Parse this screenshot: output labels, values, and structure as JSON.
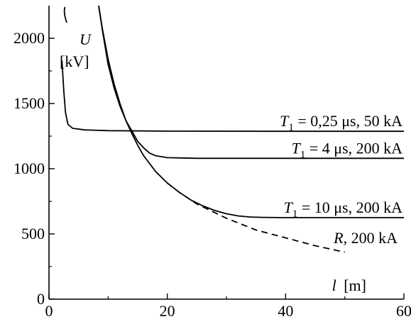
{
  "chart_data": {
    "type": "line",
    "title": "",
    "xlabel_symbol": "l",
    "xlabel_unit": "[m]",
    "ylabel_symbol": "U",
    "ylabel_unit": "[kV]",
    "xlim": [
      0,
      60
    ],
    "ylim": [
      0,
      2250
    ],
    "x_ticks": [
      0,
      20,
      40,
      60
    ],
    "y_ticks": [
      0,
      500,
      1000,
      1500,
      2000
    ],
    "x_tick_labels": [
      "0",
      "20",
      "40",
      "60"
    ],
    "y_tick_labels": [
      "0",
      "500",
      "1000",
      "1500",
      "2000"
    ],
    "grid": false,
    "series": [
      {
        "name": "T1 = 0,25 μs, 50 kA",
        "label_parts": {
          "sym": "T",
          "sub": "1",
          "rest": " = 0,25 μs, 50 kA"
        },
        "style": "solid",
        "points": [
          [
            2.2,
            1830
          ],
          [
            2.5,
            1600
          ],
          [
            2.8,
            1430
          ],
          [
            3.2,
            1340
          ],
          [
            4,
            1310
          ],
          [
            6,
            1298
          ],
          [
            10,
            1292
          ],
          [
            20,
            1288
          ],
          [
            40,
            1287
          ],
          [
            60,
            1287
          ]
        ]
      },
      {
        "name": "T1 = 4 μs, 200 kA",
        "label_parts": {
          "sym": "T",
          "sub": "1",
          "rest": " = 4 μs, 200 kA"
        },
        "style": "solid",
        "points": [
          [
            8.4,
            2250
          ],
          [
            9,
            2070
          ],
          [
            10,
            1800
          ],
          [
            11,
            1620
          ],
          [
            12,
            1480
          ],
          [
            13,
            1370
          ],
          [
            14,
            1290
          ],
          [
            15,
            1210
          ],
          [
            16,
            1160
          ],
          [
            17,
            1120
          ],
          [
            18,
            1100
          ],
          [
            20,
            1085
          ],
          [
            25,
            1080
          ],
          [
            40,
            1080
          ],
          [
            60,
            1080
          ]
        ]
      },
      {
        "name": "T1 = 10 μs, 200 kA",
        "label_parts": {
          "sym": "T",
          "sub": "1",
          "rest": " = 10 μs, 200 kA"
        },
        "style": "solid",
        "points": [
          [
            8.4,
            2250
          ],
          [
            9,
            2080
          ],
          [
            10,
            1840
          ],
          [
            11,
            1650
          ],
          [
            12,
            1500
          ],
          [
            13,
            1370
          ],
          [
            14,
            1270
          ],
          [
            15,
            1180
          ],
          [
            16,
            1100
          ],
          [
            18,
            980
          ],
          [
            20,
            890
          ],
          [
            22,
            820
          ],
          [
            24,
            760
          ],
          [
            26,
            715
          ],
          [
            28,
            680
          ],
          [
            30,
            655
          ],
          [
            32,
            638
          ],
          [
            34,
            630
          ],
          [
            36,
            627
          ],
          [
            40,
            625
          ],
          [
            60,
            625
          ]
        ]
      },
      {
        "name": "R, 200 kA",
        "label_parts": {
          "sym": "R",
          "sub": "",
          "rest": ", 200 kA"
        },
        "style": "dashed",
        "points": [
          [
            20,
            890
          ],
          [
            22,
            820
          ],
          [
            25,
            730
          ],
          [
            30,
            620
          ],
          [
            35,
            530
          ],
          [
            40,
            470
          ],
          [
            45,
            410
          ],
          [
            50,
            360
          ]
        ]
      }
    ]
  }
}
